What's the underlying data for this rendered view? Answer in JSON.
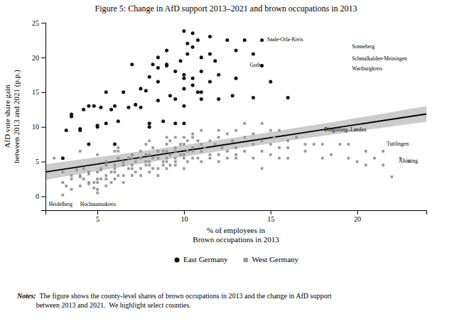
{
  "chart_data": {
    "type": "scatter",
    "title": "Figure 5:  Change in AfD support 2013–2021 and brown occupations in 2013",
    "x_label": "% of employees in\nBrown occupations in 2013",
    "y_label": "AfD vote share gain\nbetween 2013 and 2021 (p.p.)",
    "xlim": [
      2,
      24
    ],
    "ylim": [
      -2,
      25
    ],
    "xticks": [
      5,
      10,
      15,
      20
    ],
    "yticks": [
      0,
      5,
      10,
      15,
      20,
      25
    ],
    "grid": false,
    "legend": "bottom",
    "series": [
      {
        "name": "East Germany",
        "type": "scatter",
        "marker": "circle",
        "color": "#111111",
        "x": [
          3.0,
          3.2,
          3.5,
          3.5,
          4.0,
          4.0,
          4.2,
          4.5,
          4.5,
          4.8,
          5.0,
          5.0,
          5.2,
          5.5,
          5.5,
          5.8,
          6.0,
          6.0,
          6.2,
          6.5,
          6.8,
          7.0,
          7.2,
          7.5,
          7.5,
          7.8,
          8.0,
          8.0,
          8.0,
          8.2,
          8.5,
          8.5,
          8.5,
          8.5,
          8.8,
          9.0,
          9.0,
          9.0,
          9.2,
          9.5,
          9.5,
          9.5,
          9.8,
          10.0,
          10.0,
          10.0,
          10.0,
          10.0,
          10.0,
          10.2,
          10.2,
          10.5,
          10.5,
          10.5,
          10.5,
          10.8,
          10.8,
          11.0,
          11.0,
          11.0,
          11.0,
          11.5,
          11.5,
          11.5,
          11.8,
          12.0,
          12.0,
          12.5,
          12.8,
          13.0,
          13.0,
          13.5,
          14.0,
          14.0,
          14.5,
          14.5,
          15.0,
          16.0
        ],
        "values": [
          5.5,
          9.5,
          11.5,
          11.8,
          9.5,
          9.7,
          12.5,
          13.0,
          7.5,
          13.0,
          10.0,
          10.2,
          12.8,
          15.0,
          10.5,
          12.5,
          7.5,
          13.0,
          10.8,
          15.0,
          12.8,
          19.0,
          13.2,
          15.5,
          12.8,
          15.2,
          10.5,
          17.2,
          10.0,
          19.0,
          20.0,
          18.5,
          16.5,
          13.8,
          10.8,
          18.8,
          19.0,
          21.0,
          14.5,
          10.5,
          14.0,
          18.0,
          19.5,
          23.8,
          17.5,
          17.0,
          15.5,
          13.0,
          10.5,
          22.0,
          20.5,
          16.0,
          17.0,
          21.5,
          23.5,
          15.0,
          22.5,
          20.0,
          18.0,
          15.0,
          14.0,
          16.5,
          23.0,
          20.5,
          19.5,
          17.5,
          14.0,
          22.5,
          14.5,
          21.0,
          17.0,
          22.5,
          14.2,
          20.5,
          22.5,
          18.8,
          16.5,
          14.2
        ]
      },
      {
        "name": "West Germany",
        "type": "scatter",
        "marker": "square",
        "color": "#999999",
        "x": [
          2.5,
          3.0,
          3.0,
          3.0,
          3.2,
          3.5,
          3.5,
          3.5,
          3.8,
          4.0,
          4.0,
          4.0,
          4.0,
          4.2,
          4.2,
          4.5,
          4.5,
          4.5,
          4.5,
          4.8,
          4.8,
          5.0,
          5.0,
          5.0,
          5.0,
          5.0,
          5.0,
          5.2,
          5.2,
          5.2,
          5.5,
          5.5,
          5.5,
          5.5,
          5.5,
          5.8,
          5.8,
          6.0,
          6.0,
          6.0,
          6.0,
          6.0,
          6.2,
          6.2,
          6.2,
          6.2,
          6.5,
          6.5,
          6.5,
          6.5,
          6.8,
          6.8,
          7.0,
          7.0,
          7.0,
          7.0,
          7.0,
          7.2,
          7.2,
          7.5,
          7.5,
          7.5,
          7.5,
          7.8,
          7.8,
          7.8,
          7.8,
          8.0,
          8.0,
          8.0,
          8.0,
          8.0,
          8.2,
          8.2,
          8.2,
          8.5,
          8.5,
          8.5,
          8.5,
          8.8,
          8.8,
          8.8,
          9.0,
          9.0,
          9.0,
          9.0,
          9.0,
          9.0,
          9.2,
          9.2,
          9.2,
          9.5,
          9.5,
          9.5,
          9.5,
          9.5,
          9.5,
          9.5,
          9.8,
          9.8,
          10.0,
          10.0,
          10.0,
          10.0,
          10.0,
          10.2,
          10.2,
          10.2,
          10.5,
          10.5,
          10.5,
          10.5,
          10.5,
          10.8,
          10.8,
          11.0,
          11.0,
          11.0,
          11.0,
          11.2,
          11.5,
          11.5,
          11.5,
          11.8,
          12.0,
          12.0,
          12.0,
          12.0,
          12.2,
          12.5,
          12.5,
          12.5,
          12.8,
          13.0,
          13.0,
          13.0,
          13.0,
          13.5,
          13.5,
          13.5,
          14.0,
          14.0,
          14.0,
          14.5,
          14.5,
          14.5,
          14.5,
          15.0,
          15.0,
          15.0,
          15.2,
          15.5,
          15.5,
          15.5,
          16.0,
          16.0,
          16.0,
          16.5,
          17.0,
          17.0,
          17.5,
          18.0,
          18.0,
          18.5,
          19.0,
          19.5,
          19.5,
          20.0,
          20.5,
          20.5,
          21.0,
          21.5,
          21.5,
          22.0,
          22.5,
          23.0
        ],
        "values": [
          5.5,
          0.2,
          2.0,
          3.5,
          1.5,
          3.0,
          2.5,
          1.0,
          3.8,
          2.8,
          1.5,
          6.5,
          3.0,
          2.5,
          4.0,
          1.8,
          3.2,
          2.0,
          3.5,
          2.0,
          1.2,
          3.5,
          2.5,
          2.0,
          1.0,
          6.0,
          0.5,
          4.0,
          2.5,
          3.8,
          5.0,
          2.5,
          3.0,
          1.5,
          4.5,
          3.5,
          2.0,
          3.5,
          4.5,
          6.5,
          2.5,
          4.0,
          3.0,
          5.5,
          6.5,
          7.0,
          4.5,
          3.0,
          5.0,
          2.0,
          4.0,
          5.5,
          4.5,
          3.0,
          5.5,
          6.0,
          4.0,
          5.0,
          3.5,
          5.5,
          4.0,
          6.5,
          3.0,
          5.0,
          4.5,
          7.5,
          6.0,
          4.5,
          6.0,
          5.0,
          3.5,
          8.0,
          5.5,
          4.0,
          7.0,
          5.5,
          4.0,
          6.5,
          3.0,
          5.0,
          6.5,
          4.5,
          5.0,
          6.5,
          8.5,
          4.0,
          7.5,
          5.5,
          6.0,
          8.0,
          4.5,
          5.5,
          7.0,
          8.5,
          4.5,
          10.5,
          6.5,
          5.0,
          7.5,
          6.0,
          5.5,
          7.5,
          4.0,
          8.5,
          6.0,
          6.5,
          8.0,
          5.0,
          6.5,
          8.5,
          7.0,
          5.5,
          9.0,
          8.0,
          5.5,
          6.5,
          9.5,
          7.5,
          5.0,
          7.0,
          8.0,
          6.0,
          5.5,
          7.5,
          6.0,
          8.5,
          5.0,
          9.5,
          7.0,
          6.5,
          9.0,
          5.5,
          8.0,
          7.0,
          6.0,
          9.5,
          5.5,
          8.5,
          6.5,
          10.5,
          7.5,
          9.0,
          5.5,
          8.0,
          10.5,
          6.5,
          4.0,
          9.5,
          7.5,
          6.0,
          8.5,
          7.0,
          9.5,
          5.5,
          8.0,
          7.0,
          5.5,
          8.5,
          7.5,
          6.5,
          7.5,
          5.5,
          7.5,
          6.0,
          7.5,
          5.5,
          7.5,
          5.0,
          6.5,
          4.5,
          5.5,
          4.5,
          6.5,
          2.8,
          5.5,
          5.0
        ]
      },
      {
        "type": "line",
        "color": "#000000",
        "x": [
          2,
          24
        ],
        "values": [
          3.5,
          11.86
        ]
      },
      {
        "type": "area",
        "color": "#cccccc",
        "x": [
          2,
          4.2,
          6.4,
          8.6,
          10.8,
          13,
          15.2,
          17.4,
          19.6,
          21.8,
          24
        ],
        "lower": [
          2.3686,
          3.3115,
          4.239,
          5.1464,
          6.0282,
          6.88,
          7.7002,
          8.4904,
          9.255,
          9.9995,
          10.7286
        ],
        "upper": [
          4.6314,
          5.3605,
          6.105,
          6.8696,
          7.6598,
          8.48,
          9.3318,
          10.2136,
          11.121,
          12.0485,
          12.9914
        ]
      }
    ],
    "annotations": [
      {
        "text": "Saale-Orla-Kreis",
        "x": 14.8,
        "y": 22.5
      },
      {
        "text": "Sonneberg",
        "x": 19.7,
        "y": 21.5
      },
      {
        "text": "Schmalkalden-Meiningen",
        "x": 19.7,
        "y": 19.8
      },
      {
        "text": "Gotha",
        "x": 13.8,
        "y": 18.8
      },
      {
        "text": "Wartburgkreis",
        "x": 19.7,
        "y": 18.3
      },
      {
        "text": "Dingolfing–Landau",
        "x": 18.1,
        "y": 9.5
      },
      {
        "text": "Tuttlingen",
        "x": 21.7,
        "y": 7.5
      },
      {
        "text": "Altötting",
        "x": 22.4,
        "y": 5.0
      },
      {
        "text": "Heidelberg",
        "x": 2.2,
        "y": -1.2
      },
      {
        "text": "Hochtaunuskreis",
        "x": 4.0,
        "y": -1.2
      }
    ],
    "notes": {
      "bold": "Notes:",
      "text": "  The figure shows the county-level shares of brown occupations in 2013 and the change in AfD support\nbetween 2013 and 2021.  We highlight select counties."
    }
  }
}
